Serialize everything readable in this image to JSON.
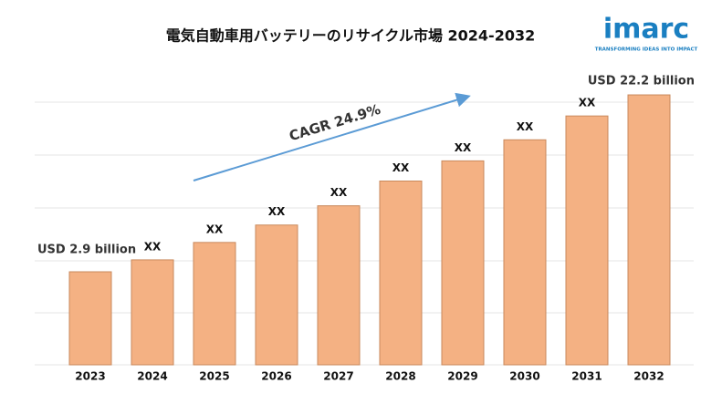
{
  "chart_data": {
    "type": "bar",
    "title": "電気自動車用バッテリーのリサイクル市場 2024-2032",
    "categories": [
      "2023",
      "2024",
      "2025",
      "2026",
      "2027",
      "2028",
      "2029",
      "2030",
      "2031",
      "2032"
    ],
    "values": [
      2.9,
      4.2,
      6.1,
      8.0,
      10.1,
      12.8,
      15.0,
      17.3,
      19.9,
      22.2
    ],
    "value_labels": [
      "USD 2.9 billion",
      "XX",
      "XX",
      "XX",
      "XX",
      "XX",
      "XX",
      "XX",
      "XX",
      "USD 22.2 billion"
    ],
    "color": "#f4b183",
    "ylim": [
      -7.25,
      23
    ],
    "annotation": "CAGR 24.9%",
    "logo": "imarc",
    "logo_tagline": "TRANSFORMING IDEAS INTO IMPACT"
  }
}
